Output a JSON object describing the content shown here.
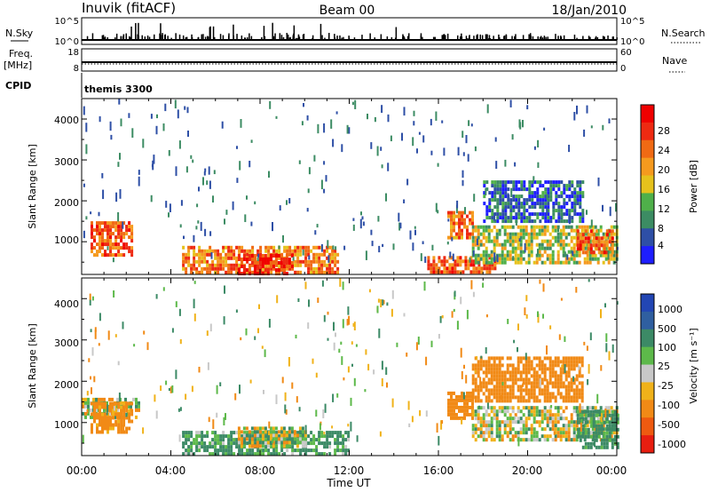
{
  "header": {
    "station": "Inuvik (fitACF)",
    "beam": "Beam 00",
    "date": "18/Jan/2010"
  },
  "strips": {
    "nsky_label": "N.Sky",
    "nsky_ticks": [
      "10^5",
      "10^0"
    ],
    "nsearch_label": "N.Search",
    "nsearch_ticks": [
      "10^5",
      "10^0"
    ],
    "freq_label": "Freq.",
    "freq_unit": "[MHz]",
    "freq_ticks": [
      "18",
      "8"
    ],
    "nave_label": "Nave",
    "nave_ticks": [
      "60",
      "0"
    ],
    "cpid_label": "CPID",
    "cpid_value": "themis 3300"
  },
  "colorbars": {
    "power": {
      "label": "Power [dB]",
      "ticks": [
        "28",
        "24",
        "20",
        "16",
        "12",
        "8",
        "4"
      ],
      "colors": [
        "#1e1eff",
        "#2e4fa6",
        "#3c8c63",
        "#4fb04a",
        "#e6c21c",
        "#f59a1e",
        "#f06a14",
        "#ee2a12",
        "#f00000"
      ]
    },
    "velocity": {
      "label": "Velocity [m s⁻¹]",
      "ticks": [
        "1000",
        "500",
        "100",
        "25",
        "-25",
        "-100",
        "-500",
        "-1000"
      ],
      "colors": [
        "#2246b4",
        "#2f5fa0",
        "#3c8a66",
        "#5db94a",
        "#c8c8c8",
        "#f0b21a",
        "#f18a16",
        "#ee5a10",
        "#e81e10"
      ]
    }
  },
  "chart_data": [
    {
      "type": "heatmap",
      "title": "",
      "xlabel": "Time UT",
      "ylabel": "Slant Range [km]",
      "xlim": [
        0,
        24
      ],
      "ylim": [
        200,
        4500
      ],
      "x_ticks": [
        "00:00",
        "04:00",
        "08:00",
        "12:00",
        "16:00",
        "20:00",
        "00:00"
      ],
      "y_ticks": [
        "1000",
        "2000",
        "3000",
        "4000"
      ],
      "parameter": "Power [dB]",
      "echo_regions": [
        {
          "t0": 0.4,
          "t1": 2.2,
          "r0": 700,
          "r1": 1500,
          "value": 24
        },
        {
          "t0": 4.5,
          "t1": 11.5,
          "r0": 250,
          "r1": 900,
          "value": 22
        },
        {
          "t0": 7.0,
          "t1": 9.5,
          "r0": 250,
          "r1": 700,
          "value": 28
        },
        {
          "t0": 16.4,
          "t1": 17.5,
          "r0": 1100,
          "r1": 1750,
          "value": 22
        },
        {
          "t0": 15.5,
          "t1": 18.5,
          "r0": 250,
          "r1": 650,
          "value": 24
        },
        {
          "t0": 17.5,
          "t1": 24.0,
          "r0": 500,
          "r1": 1400,
          "value": 14
        },
        {
          "t0": 18.0,
          "t1": 22.5,
          "r0": 1500,
          "r1": 2500,
          "value": 6
        },
        {
          "t0": 22.2,
          "t1": 23.8,
          "r0": 700,
          "r1": 1300,
          "value": 24
        }
      ]
    },
    {
      "type": "heatmap",
      "title": "",
      "xlabel": "Time UT",
      "ylabel": "Slant Range [km]",
      "xlim": [
        0,
        24
      ],
      "ylim": [
        200,
        4500
      ],
      "x_ticks": [
        "00:00",
        "04:00",
        "08:00",
        "12:00",
        "16:00",
        "20:00",
        "00:00"
      ],
      "y_ticks": [
        "1000",
        "2000",
        "3000",
        "4000"
      ],
      "parameter": "Velocity [m s-1]",
      "echo_regions": [
        {
          "t0": 0.0,
          "t1": 2.6,
          "r0": 1100,
          "r1": 1600,
          "value": 0
        },
        {
          "t0": 0.4,
          "t1": 2.2,
          "r0": 800,
          "r1": 1500,
          "value": -200
        },
        {
          "t0": 4.5,
          "t1": 12.0,
          "r0": 250,
          "r1": 800,
          "value": 150
        },
        {
          "t0": 7.0,
          "t1": 10.0,
          "r0": 400,
          "r1": 900,
          "value": 0
        },
        {
          "t0": 16.4,
          "t1": 17.5,
          "r0": 1100,
          "r1": 1750,
          "value": -300
        },
        {
          "t0": 17.5,
          "t1": 22.5,
          "r0": 1500,
          "r1": 2600,
          "value": -300
        },
        {
          "t0": 17.5,
          "t1": 24.0,
          "r0": 600,
          "r1": 1400,
          "value": 0
        },
        {
          "t0": 22.2,
          "t1": 24.0,
          "r0": 400,
          "r1": 1300,
          "value": 200
        }
      ]
    }
  ]
}
